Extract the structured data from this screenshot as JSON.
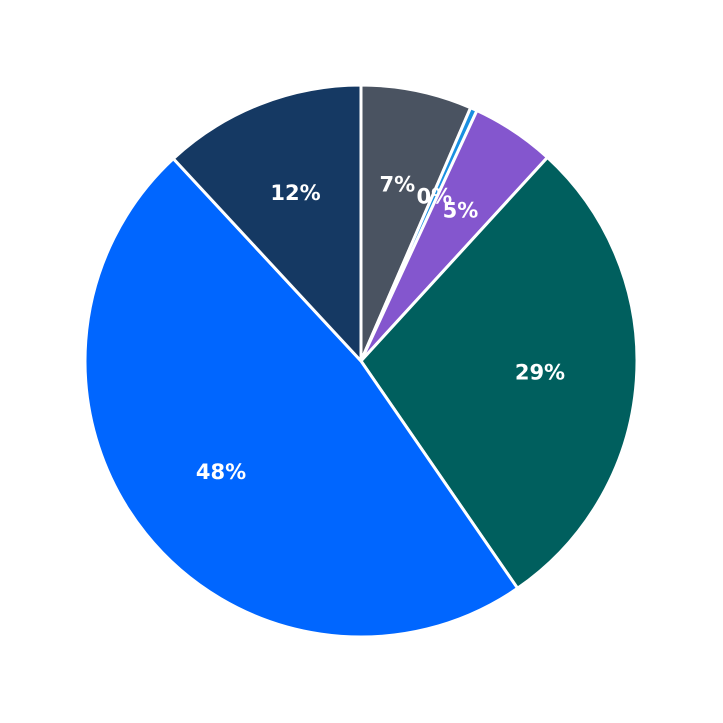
{
  "chart_data": {
    "type": "pie",
    "values": [
      6.5,
      0.4,
      4.9,
      28.6,
      47.7,
      11.9
    ],
    "value_labels": [
      "7%",
      "0%",
      "5%",
      "29%",
      "48%",
      "12%"
    ],
    "colors": [
      "#4a5361",
      "#1a8fe0",
      "#8456ce",
      "#005f5e",
      "#0066ff",
      "#153963"
    ]
  }
}
